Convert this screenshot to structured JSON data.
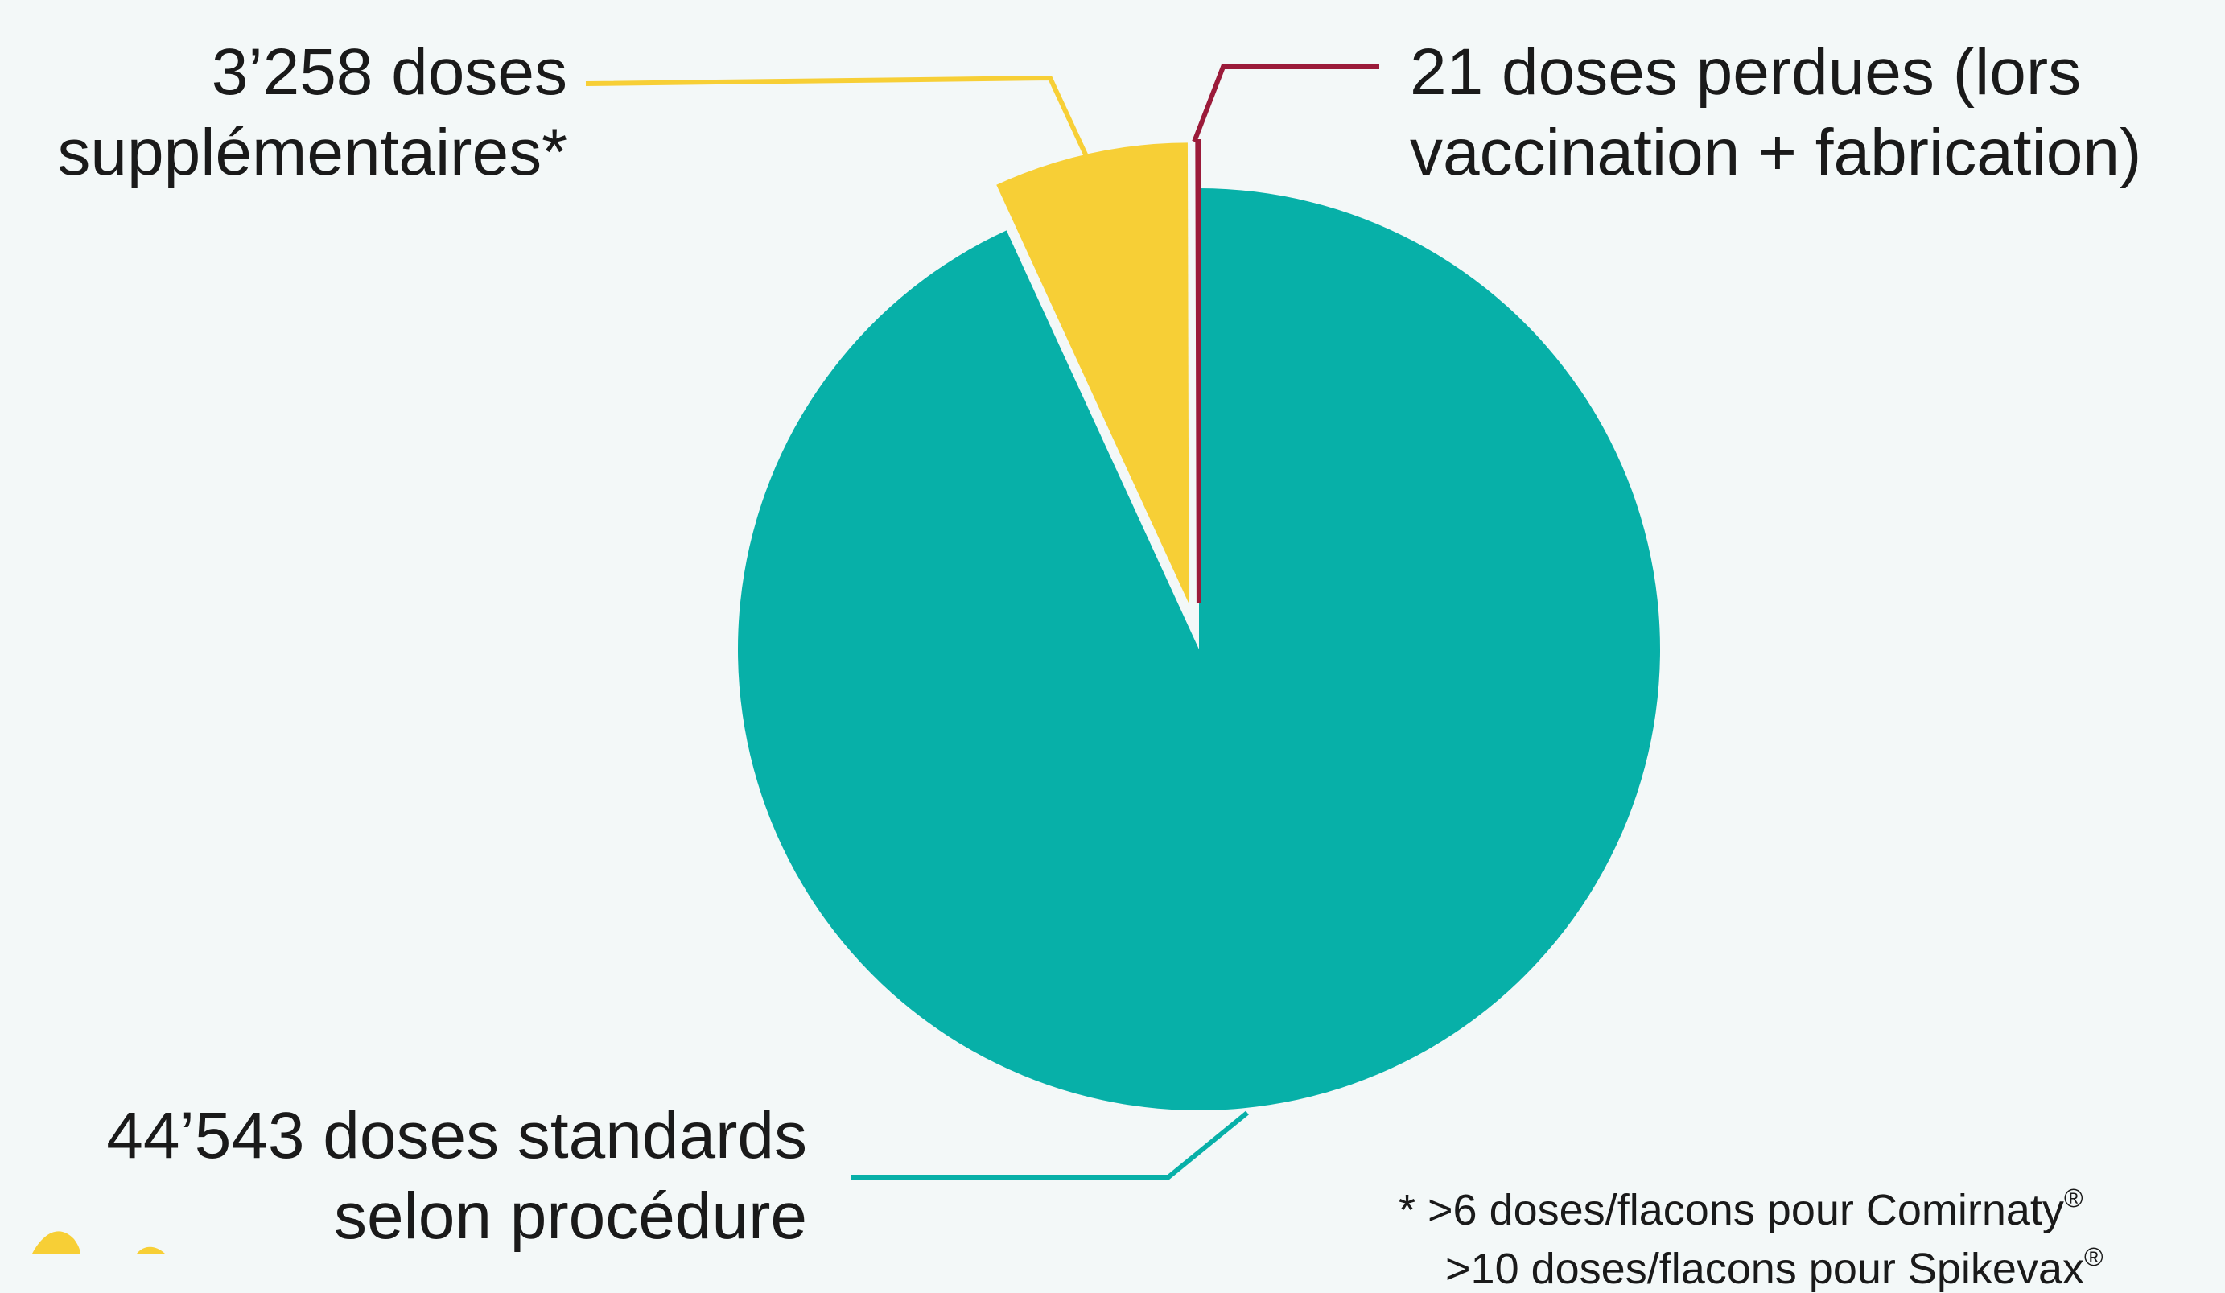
{
  "chart_data": {
    "type": "pie",
    "title": "",
    "start_angle_deg": 0,
    "direction": "clockwise",
    "slices": [
      {
        "label_lines": [
          "44’543 doses standards",
          "selon procédure"
        ],
        "value": 44543,
        "color": "#07b0a8",
        "exploded": false
      },
      {
        "label_lines": [
          "3’258 doses",
          "supplémentaires*"
        ],
        "value": 3258,
        "color": "#f7cf36",
        "exploded": true
      },
      {
        "label_lines": [
          "21 doses perdues (lors",
          "vaccination + fabrication)"
        ],
        "value": 21,
        "color": "#9b1b3a",
        "exploded": true
      }
    ]
  },
  "footnote": {
    "line1_text": "* >6 doses/flacons pour Comirnaty",
    "line2_text": ">10 doses/flacons pour Spikevax",
    "mark": "®"
  }
}
